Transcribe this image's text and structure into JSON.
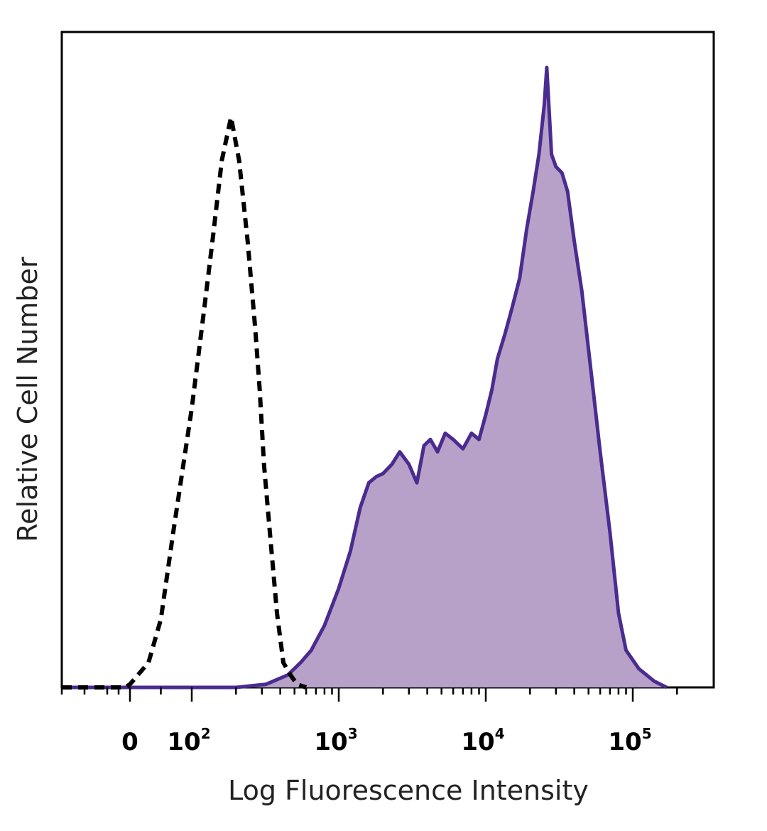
{
  "chart_data": {
    "type": "area",
    "xlabel": "Log Fluorescence Intensity",
    "ylabel": "Relative Cell Number",
    "x_scale": "biexponential",
    "x_ticks": [
      {
        "value": 0,
        "label": "0",
        "exp": ""
      },
      {
        "value": 100,
        "label": "10",
        "exp": "2"
      },
      {
        "value": 1000,
        "label": "10",
        "exp": "3"
      },
      {
        "value": 10000,
        "label": "10",
        "exp": "4"
      },
      {
        "value": 100000,
        "label": "10",
        "exp": "5"
      }
    ],
    "xlim": [
      -300,
      240000
    ],
    "ylim": [
      0,
      100
    ],
    "grid": false,
    "legend": "none",
    "series": [
      {
        "style": "dashed-outline",
        "color": "#000000",
        "points": [
          [
            -300,
            0
          ],
          [
            -20,
            0
          ],
          [
            0,
            0.5
          ],
          [
            30,
            4
          ],
          [
            50,
            11
          ],
          [
            70,
            25
          ],
          [
            100,
            45
          ],
          [
            120,
            60
          ],
          [
            140,
            73
          ],
          [
            160,
            85
          ],
          [
            185,
            92
          ],
          [
            210,
            85
          ],
          [
            240,
            72
          ],
          [
            270,
            58
          ],
          [
            290,
            48
          ],
          [
            310,
            36
          ],
          [
            340,
            25
          ],
          [
            380,
            12
          ],
          [
            420,
            4
          ],
          [
            470,
            2
          ],
          [
            520,
            0.5
          ],
          [
            600,
            0
          ]
        ]
      },
      {
        "style": "filled",
        "color": "#4a2c90",
        "fill": "#b7a1c9",
        "points": [
          [
            -300,
            0
          ],
          [
            200,
            0
          ],
          [
            320,
            0.5
          ],
          [
            450,
            2
          ],
          [
            550,
            4
          ],
          [
            650,
            6
          ],
          [
            800,
            10
          ],
          [
            1000,
            16
          ],
          [
            1200,
            22
          ],
          [
            1400,
            29
          ],
          [
            1600,
            33
          ],
          [
            1800,
            34
          ],
          [
            2000,
            34.5
          ],
          [
            2300,
            36
          ],
          [
            2600,
            38
          ],
          [
            3000,
            36
          ],
          [
            3400,
            33
          ],
          [
            3800,
            39
          ],
          [
            4200,
            40
          ],
          [
            4700,
            38
          ],
          [
            5300,
            41
          ],
          [
            6000,
            40
          ],
          [
            7000,
            38.5
          ],
          [
            8000,
            41
          ],
          [
            9000,
            40
          ],
          [
            10000,
            44
          ],
          [
            11000,
            48
          ],
          [
            12000,
            53
          ],
          [
            13500,
            57
          ],
          [
            15000,
            61
          ],
          [
            17000,
            66
          ],
          [
            19000,
            74
          ],
          [
            21000,
            80
          ],
          [
            23000,
            86
          ],
          [
            25000,
            94
          ],
          [
            26000,
            100
          ],
          [
            28000,
            86
          ],
          [
            30000,
            84
          ],
          [
            33000,
            83
          ],
          [
            36000,
            80
          ],
          [
            40000,
            72
          ],
          [
            45000,
            64
          ],
          [
            52000,
            51
          ],
          [
            60000,
            38
          ],
          [
            70000,
            25
          ],
          [
            80000,
            12
          ],
          [
            90000,
            6
          ],
          [
            110000,
            3
          ],
          [
            140000,
            1
          ],
          [
            170000,
            0
          ]
        ]
      }
    ]
  }
}
